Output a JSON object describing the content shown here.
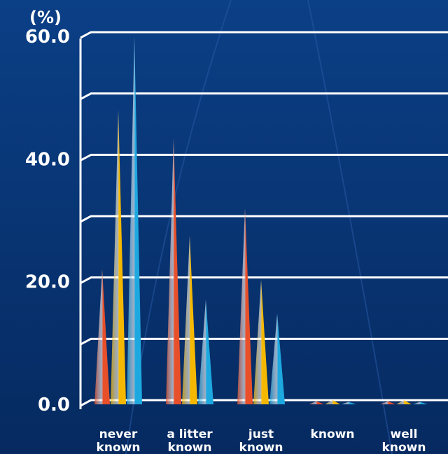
{
  "chart_data": {
    "type": "cone-bar",
    "y_axis_label": "(%)",
    "categories": [
      "never known",
      "a litter known",
      "just known",
      "known",
      "well known"
    ],
    "series": [
      {
        "color": "#e8502a",
        "values": [
          22,
          43.4,
          32,
          0.5,
          0.5
        ]
      },
      {
        "color": "#f5b800",
        "values": [
          48,
          27.5,
          20.3,
          0.7,
          0.7
        ]
      },
      {
        "color": "#1ea8e0",
        "values": [
          60,
          17.1,
          14.8,
          0.4,
          0.4
        ]
      }
    ],
    "ylim": [
      0,
      60
    ],
    "yticks": [
      {
        "value": 0,
        "label": "0.0"
      },
      {
        "value": 20,
        "label": "20.0"
      },
      {
        "value": 40,
        "label": "40.0"
      },
      {
        "value": 60,
        "label": "60.0"
      }
    ],
    "grid_lines": [
      0,
      10,
      20,
      30,
      40,
      50,
      60
    ],
    "grid": true
  }
}
